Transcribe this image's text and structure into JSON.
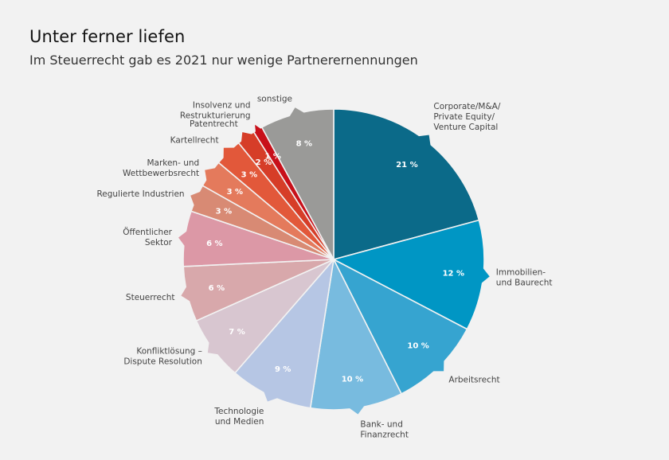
{
  "header": {
    "title": "Unter ferner liefen",
    "subtitle": "Im Steuerrecht gab es 2021 nur wenige Partnerernennungen"
  },
  "chart_data": {
    "type": "pie",
    "title": "Unter ferner liefen",
    "subtitle": "Im Steuerrecht gab es 2021 nur wenige Partnerernennungen",
    "unit": "%",
    "start": "12 o'clock, clockwise",
    "slices": [
      {
        "label": "Corporate/M&A/ Private Equity/ Venture Capital",
        "lines": [
          "Corporate/M&A/",
          "Private Equity/",
          "Venture Capital"
        ],
        "value": 21,
        "display": "21 %",
        "color": "#0b6a89"
      },
      {
        "label": "Immobilien- und Baurecht",
        "lines": [
          "Immobilien-",
          "und Baurecht"
        ],
        "value": 12,
        "display": "12 %",
        "color": "#0096c4"
      },
      {
        "label": "Arbeitsrecht",
        "lines": [
          "Arbeitsrecht"
        ],
        "value": 10,
        "display": "10 %",
        "color": "#36a4d0"
      },
      {
        "label": "Bank- und Finanzrecht",
        "lines": [
          "Bank- und",
          "Finanzrecht"
        ],
        "value": 10,
        "display": "10 %",
        "color": "#78bbdf"
      },
      {
        "label": "Technologie und Medien",
        "lines": [
          "Technologie",
          "und Medien"
        ],
        "value": 9,
        "display": "9 %",
        "color": "#b6c6e4"
      },
      {
        "label": "Konfliktlösung – Dispute Resolution",
        "lines": [
          "Konfliktlösung –",
          "Dispute Resolution"
        ],
        "value": 7,
        "display": "7 %",
        "color": "#d8c6d0"
      },
      {
        "label": "Steuerrecht",
        "lines": [
          "Steuerrecht"
        ],
        "value": 6,
        "display": "6 %",
        "color": "#d8a8ab"
      },
      {
        "label": "Öffentlicher Sektor",
        "lines": [
          "Öffentlicher",
          "Sektor"
        ],
        "value": 6,
        "display": "6 %",
        "color": "#dc98a6"
      },
      {
        "label": "Regulierte Industrien",
        "lines": [
          "Regulierte Industrien"
        ],
        "value": 3,
        "display": "3 %",
        "color": "#d88a74"
      },
      {
        "label": "Marken- und Wettbewerbsrecht",
        "lines": [
          "Marken- und",
          "Wettbewerbsrecht"
        ],
        "value": 3,
        "display": "3 %",
        "color": "#e47a5c"
      },
      {
        "label": "Kartellrecht",
        "lines": [
          "Kartellrecht"
        ],
        "value": 3,
        "display": "3 %",
        "color": "#e2583a"
      },
      {
        "label": "Patentrecht",
        "lines": [
          "Patentrecht"
        ],
        "value": 2,
        "display": "2 %",
        "color": "#d63d28"
      },
      {
        "label": "Insolvenz und Restrukturierung",
        "lines": [
          "Insolvenz und",
          "Restrukturierung"
        ],
        "value": 1,
        "display": "1 %",
        "color": "#c8101a"
      },
      {
        "label": "sonstige",
        "lines": [
          "sonstige"
        ],
        "value": 8,
        "display": "8 %",
        "color": "#9a9a98"
      }
    ]
  }
}
